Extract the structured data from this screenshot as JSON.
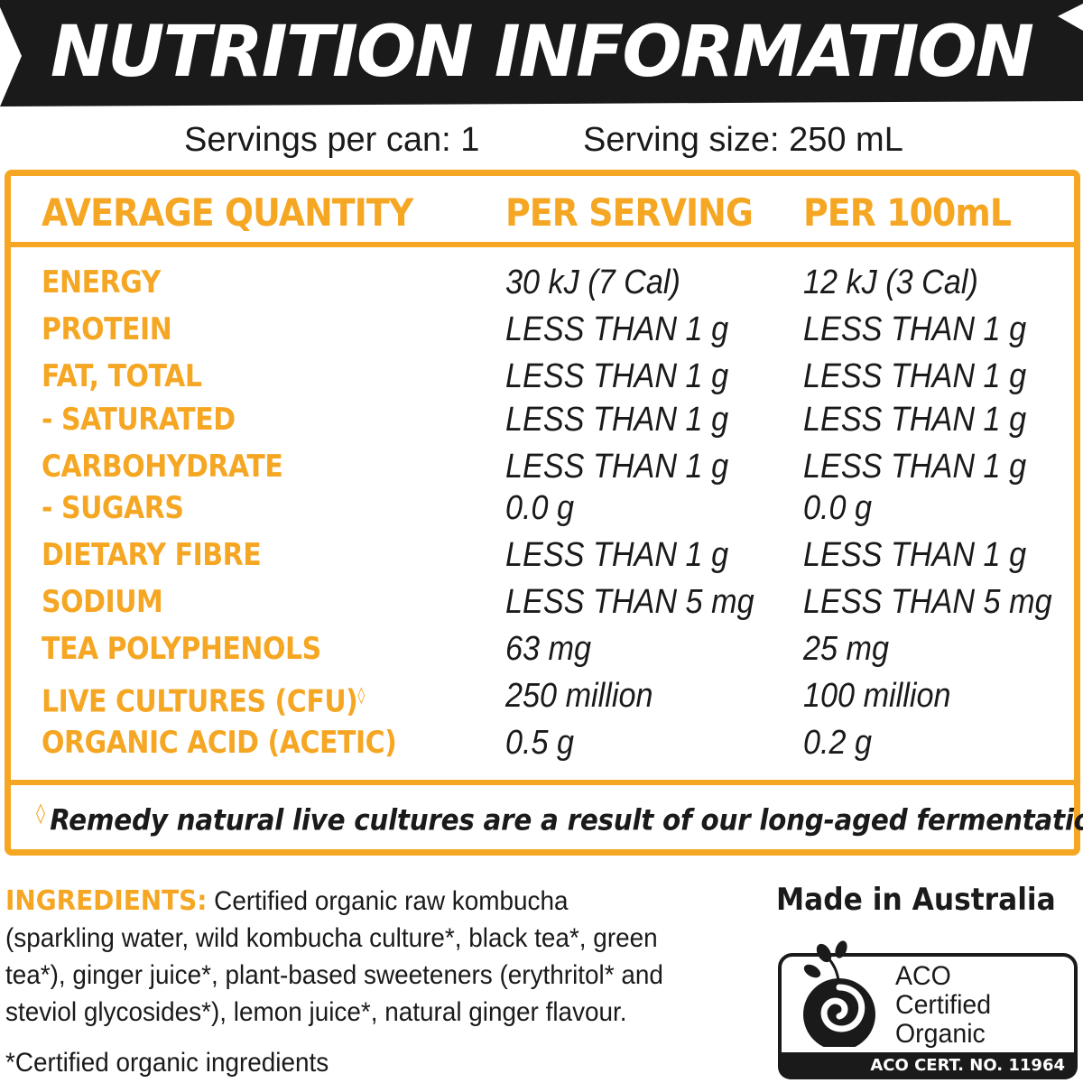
{
  "header": {
    "title": "NUTRITION INFORMATION",
    "servings_per_can": "Servings per can: 1",
    "serving_size": "Serving size: 250 mL"
  },
  "table": {
    "headers": [
      "AVERAGE QUANTITY",
      "PER SERVING",
      "PER 100mL"
    ],
    "rows": [
      {
        "label": "ENERGY",
        "per_serving": "30 kJ (7 Cal)",
        "per_100ml": "12 kJ (3 Cal)"
      },
      {
        "label": "PROTEIN",
        "per_serving": "LESS THAN 1 g",
        "per_100ml": "LESS THAN 1 g"
      },
      {
        "label": "FAT, TOTAL",
        "per_serving": "LESS THAN 1 g",
        "per_100ml": "LESS THAN 1 g"
      },
      {
        "label": "- SATURATED",
        "per_serving": "LESS THAN 1 g",
        "per_100ml": "LESS THAN 1 g"
      },
      {
        "label": "CARBOHYDRATE",
        "per_serving": "LESS THAN 1 g",
        "per_100ml": "LESS THAN 1 g"
      },
      {
        "label": "- SUGARS",
        "per_serving": "0.0 g",
        "per_100ml": "0.0 g"
      },
      {
        "label": "DIETARY FIBRE",
        "per_serving": "LESS THAN 1 g",
        "per_100ml": "LESS THAN 1 g"
      },
      {
        "label": "SODIUM",
        "per_serving": "LESS THAN 5 mg",
        "per_100ml": "LESS THAN 5 mg"
      },
      {
        "label": "TEA POLYPHENOLS",
        "per_serving": "63 mg",
        "per_100ml": "25 mg"
      },
      {
        "label": "LIVE CULTURES (CFU)",
        "label_mark": "◊",
        "per_serving": "250 million",
        "per_100ml": "100 million"
      },
      {
        "label": "ORGANIC ACID (ACETIC)",
        "per_serving": "0.5 g",
        "per_100ml": "0.2 g"
      }
    ],
    "footnote_mark": "◊",
    "footnote": "Remedy natural live cultures are a result of our long-aged fermentation."
  },
  "ingredients": {
    "label": "INGREDIENTS:",
    "text": "Certified organic raw kombucha (sparkling water, wild kombucha culture*, black tea*, green tea*), ginger juice*, plant-based sweeteners (erythritol* and steviol glycosides*), lemon juice*, natural ginger flavour.",
    "certified_note": "*Certified organic ingredients"
  },
  "origin": {
    "made_in": "Made in Australia",
    "aco_line1": "ACO",
    "aco_line2": "Certified",
    "aco_line3": "Organic",
    "aco_cert": "ACO CERT. NO. 11964",
    "aco_logo_icon": "aco-bud-logo"
  },
  "colors": {
    "accent": "#f5a623",
    "text": "#1a1a1a",
    "banner": "#1a1a1a"
  }
}
